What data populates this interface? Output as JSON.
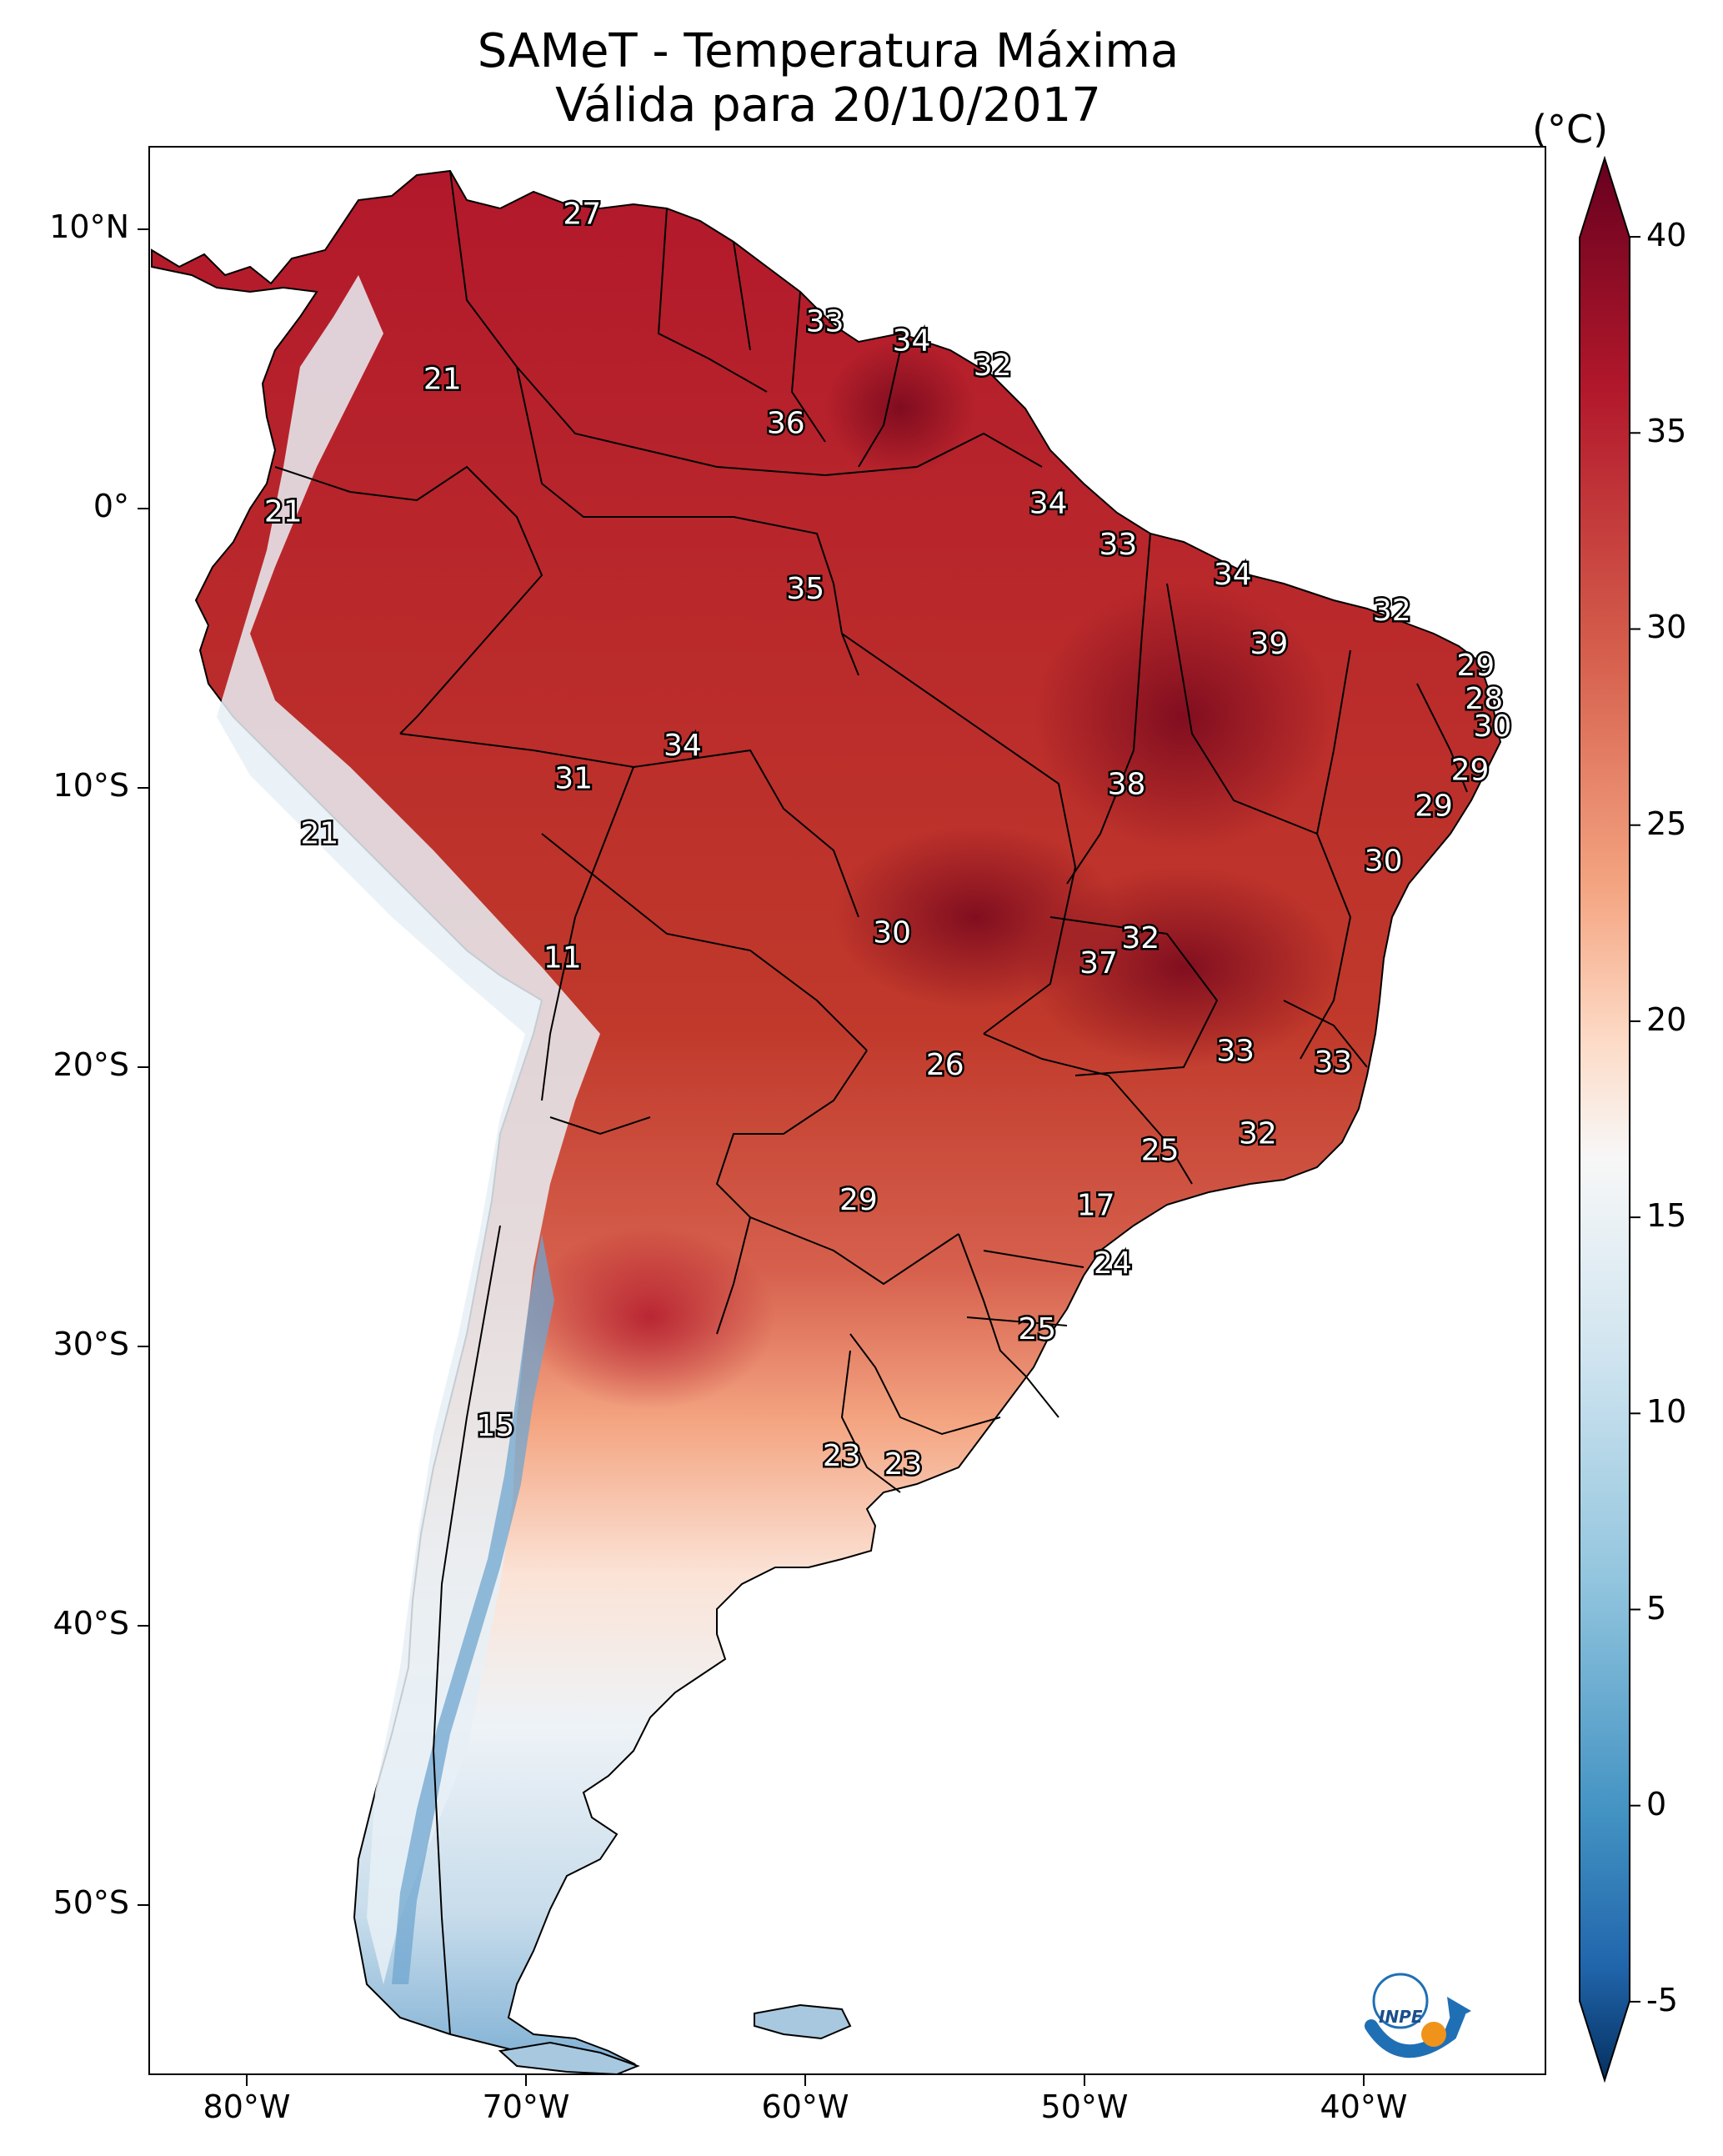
{
  "title": {
    "line1": "SAMeT - Temperatura Máxima",
    "line2": "Válida para 20/10/2017"
  },
  "colorbar": {
    "unit": "(°C)",
    "range": [
      -7,
      42
    ],
    "ticks": [
      "40",
      "35",
      "30",
      "25",
      "20",
      "15",
      "10",
      "5",
      "0",
      "-5"
    ]
  },
  "axes": {
    "lat_labels": [
      "10°N",
      "0°",
      "10°S",
      "20°S",
      "30°S",
      "40°S",
      "50°S"
    ],
    "lon_labels": [
      "80°W",
      "70°W",
      "60°W",
      "50°W",
      "40°W"
    ]
  },
  "logo": {
    "text": "INPE"
  },
  "chart_data": {
    "type": "map",
    "variable": "Temperatura Máxima (°C)",
    "date": "20/10/2017",
    "region": "South America",
    "lon_range": [
      -83,
      -33
    ],
    "lat_range": [
      -57,
      13
    ],
    "station_values": [
      {
        "lon": -67.5,
        "lat": 10.5,
        "value": "27"
      },
      {
        "lon": -72.5,
        "lat": 4.5,
        "value": "21"
      },
      {
        "lon": -58.8,
        "lat": 6.6,
        "value": "33"
      },
      {
        "lon": -55.7,
        "lat": 5.9,
        "value": "34"
      },
      {
        "lon": -52.8,
        "lat": 5.0,
        "value": "32"
      },
      {
        "lon": -60.2,
        "lat": 2.9,
        "value": "36"
      },
      {
        "lon": -78.2,
        "lat": -0.3,
        "value": "21"
      },
      {
        "lon": -50.8,
        "lat": 0.0,
        "value": "34"
      },
      {
        "lon": -48.3,
        "lat": -1.5,
        "value": "33"
      },
      {
        "lon": -59.5,
        "lat": -3.1,
        "value": "35"
      },
      {
        "lon": -44.2,
        "lat": -2.6,
        "value": "34"
      },
      {
        "lon": -38.5,
        "lat": -3.9,
        "value": "32"
      },
      {
        "lon": -42.9,
        "lat": -5.1,
        "value": "39"
      },
      {
        "lon": -35.5,
        "lat": -5.9,
        "value": "29"
      },
      {
        "lon": -35.2,
        "lat": -7.1,
        "value": "28"
      },
      {
        "lon": -34.9,
        "lat": -8.1,
        "value": "30"
      },
      {
        "lon": -63.9,
        "lat": -8.8,
        "value": "34"
      },
      {
        "lon": -67.8,
        "lat": -10.0,
        "value": "31"
      },
      {
        "lon": -35.7,
        "lat": -9.7,
        "value": "29"
      },
      {
        "lon": -37.0,
        "lat": -11.0,
        "value": "29"
      },
      {
        "lon": -48.0,
        "lat": -10.2,
        "value": "38"
      },
      {
        "lon": -76.9,
        "lat": -12.0,
        "value": "21"
      },
      {
        "lon": -38.8,
        "lat": -13.0,
        "value": "30"
      },
      {
        "lon": -56.4,
        "lat": -15.6,
        "value": "30"
      },
      {
        "lon": -47.5,
        "lat": -15.8,
        "value": "32"
      },
      {
        "lon": -49.0,
        "lat": -16.7,
        "value": "37"
      },
      {
        "lon": -68.2,
        "lat": -16.5,
        "value": "11"
      },
      {
        "lon": -54.5,
        "lat": -20.4,
        "value": "26"
      },
      {
        "lon": -44.1,
        "lat": -19.9,
        "value": "33"
      },
      {
        "lon": -40.6,
        "lat": -20.3,
        "value": "33"
      },
      {
        "lon": -43.3,
        "lat": -22.9,
        "value": "32"
      },
      {
        "lon": -46.8,
        "lat": -23.5,
        "value": "25"
      },
      {
        "lon": -57.6,
        "lat": -25.3,
        "value": "29"
      },
      {
        "lon": -49.1,
        "lat": -25.5,
        "value": "17"
      },
      {
        "lon": -48.5,
        "lat": -27.6,
        "value": "24"
      },
      {
        "lon": -51.2,
        "lat": -30.0,
        "value": "25"
      },
      {
        "lon": -70.6,
        "lat": -33.5,
        "value": "15"
      },
      {
        "lon": -58.2,
        "lat": -34.6,
        "value": "23"
      },
      {
        "lon": -56.0,
        "lat": -34.9,
        "value": "23"
      }
    ]
  }
}
